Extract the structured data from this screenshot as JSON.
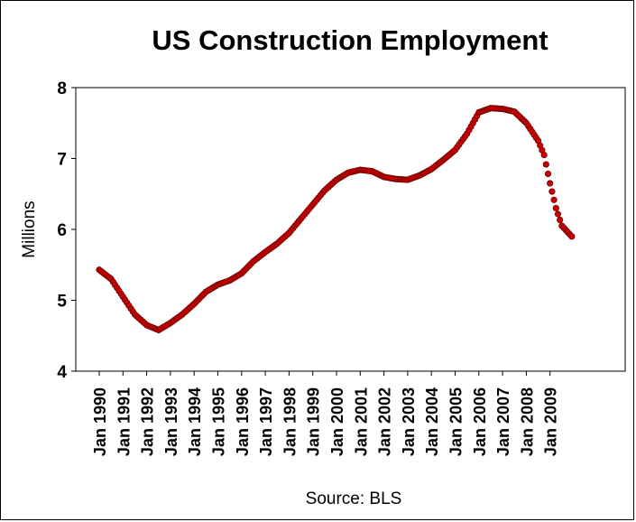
{
  "chart_data": {
    "type": "scatter",
    "title": "US Construction Employment",
    "ylabel": "Millions",
    "source": "Source: BLS",
    "ylim": [
      4,
      8
    ],
    "yticks": [
      4,
      5,
      6,
      7,
      8
    ],
    "xticks": [
      "Jan 1990",
      "Jan 1991",
      "Jan 1992",
      "Jan 1993",
      "Jan 1994",
      "Jan 1995",
      "Jan 1996",
      "Jan 1997",
      "Jan 1998",
      "Jan 1999",
      "Jan 2000",
      "Jan 2001",
      "Jan 2002",
      "Jan 2003",
      "Jan 2004",
      "Jan 2005",
      "Jan 2006",
      "Jan 2007",
      "Jan 2008",
      "Jan 2009"
    ],
    "grid": false,
    "legend": "none",
    "marker_color": "#cc0000",
    "marker_edge": "#700000",
    "series": [
      {
        "points": [
          [
            "1990-01",
            5.43
          ],
          [
            "1990-07",
            5.3
          ],
          [
            "1991-01",
            5.05
          ],
          [
            "1991-07",
            4.8
          ],
          [
            "1992-01",
            4.65
          ],
          [
            "1992-07",
            4.58
          ],
          [
            "1993-01",
            4.68
          ],
          [
            "1993-07",
            4.8
          ],
          [
            "1994-01",
            4.95
          ],
          [
            "1994-07",
            5.12
          ],
          [
            "1995-01",
            5.22
          ],
          [
            "1995-07",
            5.28
          ],
          [
            "1996-01",
            5.38
          ],
          [
            "1996-07",
            5.55
          ],
          [
            "1997-01",
            5.68
          ],
          [
            "1997-07",
            5.8
          ],
          [
            "1998-01",
            5.95
          ],
          [
            "1998-07",
            6.15
          ],
          [
            "1999-01",
            6.35
          ],
          [
            "1999-07",
            6.55
          ],
          [
            "2000-01",
            6.7
          ],
          [
            "2000-07",
            6.8
          ],
          [
            "2001-01",
            6.84
          ],
          [
            "2001-07",
            6.82
          ],
          [
            "2002-01",
            6.74
          ],
          [
            "2002-07",
            6.71
          ],
          [
            "2003-01",
            6.7
          ],
          [
            "2003-07",
            6.76
          ],
          [
            "2004-01",
            6.85
          ],
          [
            "2004-07",
            6.98
          ],
          [
            "2005-01",
            7.12
          ],
          [
            "2005-07",
            7.35
          ],
          [
            "2006-01",
            7.65
          ],
          [
            "2006-07",
            7.71
          ],
          [
            "2007-01",
            7.7
          ],
          [
            "2007-07",
            7.66
          ],
          [
            "2008-01",
            7.5
          ],
          [
            "2008-07",
            7.25
          ],
          [
            "2008-10",
            7.05
          ],
          [
            "2009-01",
            6.65
          ],
          [
            "2009-04",
            6.3
          ],
          [
            "2009-07",
            6.05
          ],
          [
            "2009-12",
            5.9
          ]
        ]
      }
    ]
  }
}
